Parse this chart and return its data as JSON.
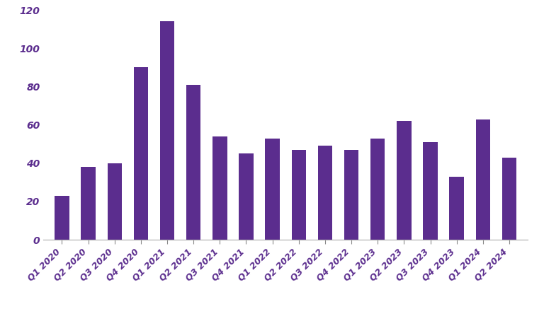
{
  "categories": [
    "Q1 2020",
    "Q2 2020",
    "Q3 2020",
    "Q4 2020",
    "Q1 2021",
    "Q2 2021",
    "Q3 2021",
    "Q4 2021",
    "Q1 2022",
    "Q2 2022",
    "Q3 2022",
    "Q4 2022",
    "Q1 2023",
    "Q2 2023",
    "Q3 2023",
    "Q4 2023",
    "Q1 2024",
    "Q2 2024"
  ],
  "values": [
    23,
    38,
    40,
    90,
    114,
    81,
    54,
    45,
    53,
    47,
    49,
    47,
    53,
    62,
    51,
    33,
    63,
    43
  ],
  "bar_color": "#5B2D8E",
  "ylim": [
    0,
    120
  ],
  "yticks": [
    0,
    20,
    40,
    60,
    80,
    100,
    120
  ],
  "bar_width": 0.55,
  "label_color": "#5B2D8E",
  "background_color": "#ffffff",
  "tick_label_fontsize": 9,
  "ytick_label_fontsize": 10
}
